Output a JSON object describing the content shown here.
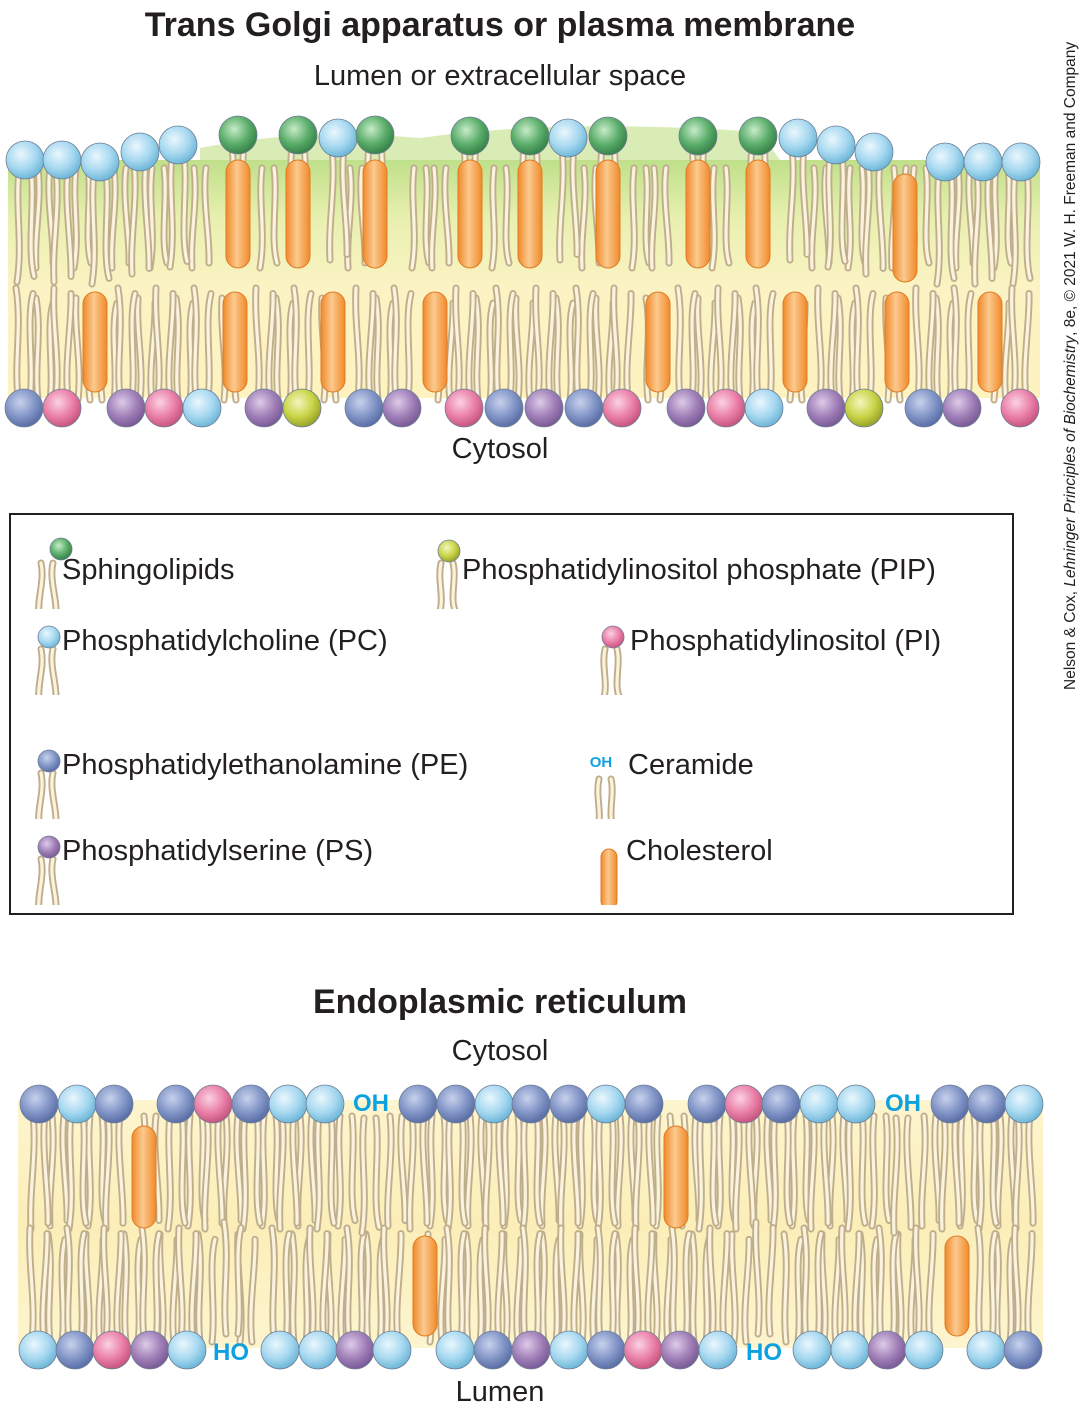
{
  "top_section": {
    "title": "Trans Golgi apparatus or plasma membrane",
    "top_label": "Lumen or extracellular space",
    "bottom_label": "Cytosol"
  },
  "legend": [
    {
      "key": "sphingolipid",
      "label": "Sphingolipids",
      "head_color": "#5aad6a"
    },
    {
      "key": "pip",
      "label": "Phosphatidylinositol phosphate (PIP)",
      "head_color": "#c9d447"
    },
    {
      "key": "pc",
      "label": "Phosphatidylcholine (PC)",
      "head_color": "#a6d8f0"
    },
    {
      "key": "pi",
      "label": "Phosphatidylinositol (PI)",
      "head_color": "#ea7fa7"
    },
    {
      "key": "pe",
      "label": "Phosphatidylethanolamine (PE)",
      "head_color": "#8295c7"
    },
    {
      "key": "ceramide",
      "label": "Ceramide",
      "head_text": "OH"
    },
    {
      "key": "ps",
      "label": "Phosphatidylserine (PS)",
      "head_color": "#a07fb8"
    },
    {
      "key": "cholesterol",
      "label": "Cholesterol",
      "color": "#f5a04a"
    }
  ],
  "bottom_section": {
    "title": "Endoplasmic reticulum",
    "top_label": "Cytosol",
    "bottom_label": "Lumen",
    "ceramide_head_label": "OH",
    "ceramide_head_label_inverted": "HO"
  },
  "colors": {
    "oh_text": "#0ea1e0",
    "tail": "#d8c7a6",
    "core": "#fbf0b8",
    "raft": "#b9dd7a"
  },
  "credit": {
    "authors": "Nelson & Cox, ",
    "book": "Lehninger Principles of Biochemistry",
    "rest": ", 8e, © 2021 W. H. Freeman and Company"
  }
}
